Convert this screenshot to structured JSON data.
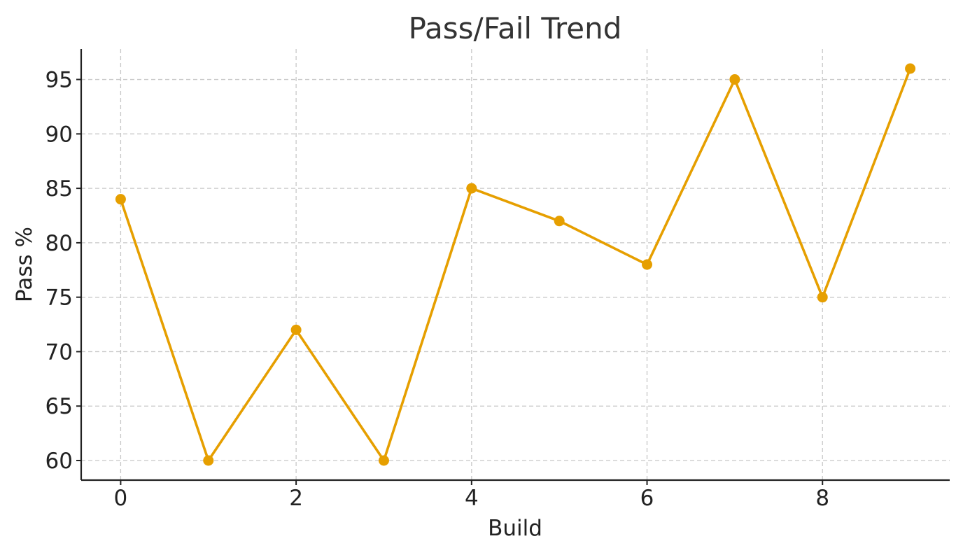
{
  "chart_data": {
    "type": "line",
    "title": "Pass/Fail Trend",
    "xlabel": "Build",
    "ylabel": "Pass %",
    "x": [
      0,
      1,
      2,
      3,
      4,
      5,
      6,
      7,
      8,
      9
    ],
    "series": [
      {
        "values": [
          84,
          60,
          72,
          60,
          85,
          82,
          78,
          95,
          75,
          96
        ],
        "color": "#E69F00",
        "marker": "circle"
      }
    ],
    "xlim": [
      -0.45,
      9.45
    ],
    "ylim": [
      58.2,
      97.8
    ],
    "xticks": [
      0,
      2,
      4,
      6,
      8
    ],
    "yticks": [
      60,
      65,
      70,
      75,
      80,
      85,
      90,
      95
    ],
    "grid": true,
    "legend": "none"
  }
}
